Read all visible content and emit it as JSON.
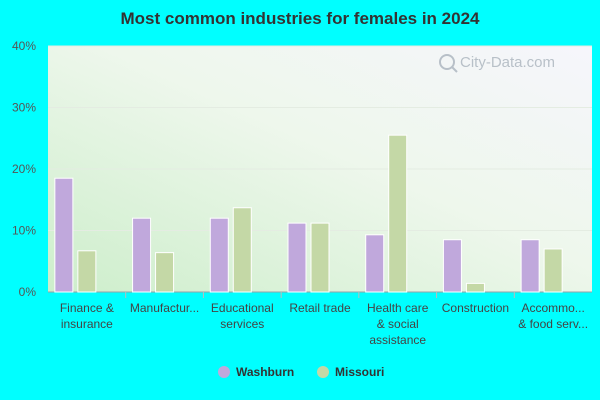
{
  "chart_data": {
    "type": "bar",
    "title": "Most common industries for females in 2024",
    "categories": [
      [
        "Finance &",
        "insurance"
      ],
      [
        "Manufactur..."
      ],
      [
        "Educational",
        "services"
      ],
      [
        "Retail trade"
      ],
      [
        "Health care",
        "& social",
        "assistance"
      ],
      [
        "Construction"
      ],
      [
        "Accommo...",
        "& food serv..."
      ]
    ],
    "series": [
      {
        "name": "Washburn",
        "color": "#c0a8dc",
        "values": [
          18.5,
          12.0,
          12.0,
          11.2,
          9.3,
          8.5,
          8.5
        ]
      },
      {
        "name": "Missouri",
        "color": "#c4d8a6",
        "values": [
          6.7,
          6.4,
          13.7,
          11.2,
          25.5,
          1.4,
          7.0
        ]
      }
    ],
    "yticks": [
      "0%",
      "10%",
      "20%",
      "30%",
      "40%"
    ],
    "ylim": [
      0,
      40
    ],
    "grid": true,
    "legend_position": "bottom"
  },
  "watermark": "City-Data.com"
}
